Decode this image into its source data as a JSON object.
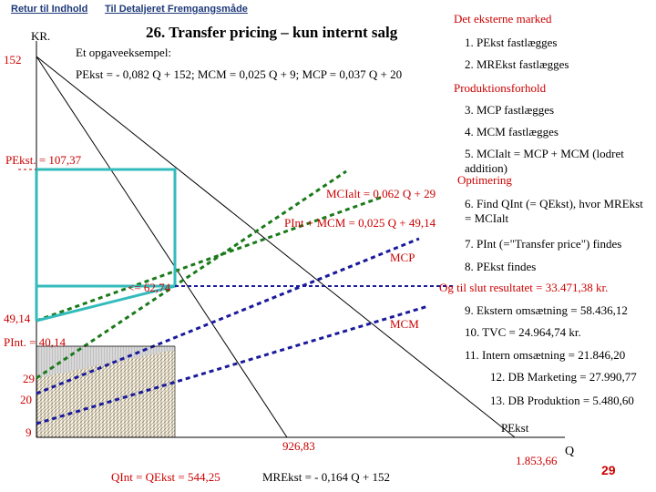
{
  "nav": {
    "back_label": "Retur til Indhold",
    "detail_label": "Til Detaljeret Fremgangsmåde"
  },
  "title": "26. Transfer pricing – kun internt salg",
  "axis": {
    "y_label": "KR.",
    "x_label": "Q",
    "y_152": "152",
    "y_49": "49,14",
    "y_pint": "PInt. = 40,14",
    "y_29": "29",
    "y_20": "20",
    "y_9": "9",
    "x_926": "926,83",
    "x_1853": "1.853,66",
    "x_qint": "QInt = QEkst = 544,25",
    "pekst_top": "PEkst. = 107,37",
    "value_6274": "<= 62,74"
  },
  "example": {
    "label": "Et opgaveeksempel:",
    "equation": "PEkst = - 0,082 Q + 152; MCM = 0,025 Q + 9; MCP = 0,037 Q + 20"
  },
  "curve_labels": {
    "mctotal": "MCIalt = 0,062 Q + 29",
    "pint_mcm": "PInt + MCM = 0,025 Q + 49,14",
    "mcp": "MCP",
    "mcm": "MCM",
    "mr": "MREkst = - 0,164 Q + 152",
    "pekst": "PEkst"
  },
  "steps": {
    "market_header": "Det eksterne marked",
    "s1": "1. PEkst fastlægges",
    "s2": "2. MREkst fastlægges",
    "production_header": "Produktionsforhold",
    "s3": "3. MCP fastlægges",
    "s4": "4. MCM fastlægges",
    "s5": "5. MCIalt = MCP + MCM (lodret addition)",
    "opt_header": "Optimering",
    "s6": "6. Find QInt (= QEkst), hvor MREkst = MCIalt",
    "s7": "7. PInt (=\"Transfer price\") findes",
    "s8": "8. PEkst findes",
    "result_header": "Og til slut resultatet = 33.471,38 kr.",
    "s9": "9. Ekstern omsætning = 58.436,12",
    "s10": "10. TVC = 24.964,74 kr.",
    "s11": "11. Intern omsætning = 21.846,20",
    "s12": "12. DB Marketing = 27.990,77",
    "s13": "13. DB Produktion = 5.480,60"
  },
  "page_number": "29"
}
